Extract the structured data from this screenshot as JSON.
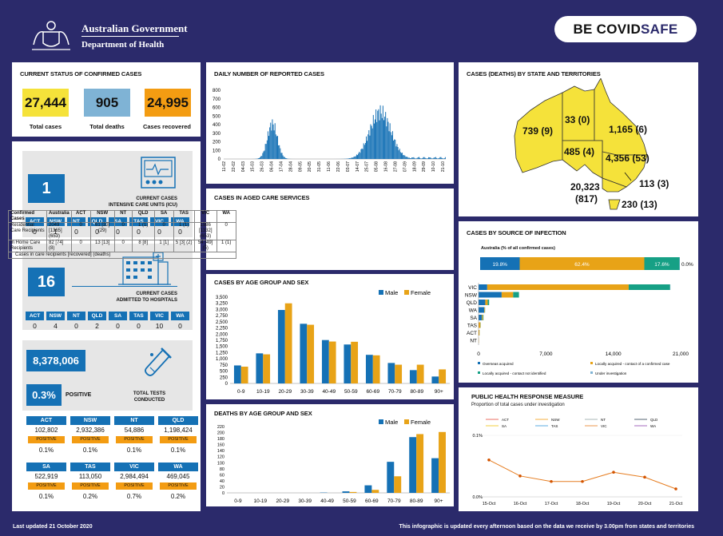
{
  "header": {
    "gov": "Australian Government",
    "dept": "Department of Health",
    "be": "BE COVID",
    "safe": "SAFE"
  },
  "status": {
    "title": "CURRENT STATUS OF CONFIRMED CASES",
    "total_cases": "27,444",
    "total_cases_label": "Total cases",
    "total_deaths": "905",
    "total_deaths_label": "Total deaths",
    "recovered": "24,995",
    "recovered_label": "Cases recovered"
  },
  "icu": {
    "value": "1",
    "caption1": "CURRENT CASES",
    "caption2": "INTENSIVE CARE UNITS (ICU)"
  },
  "hosp": {
    "value": "16",
    "caption1": "CURRENT CASES",
    "caption2": "ADMITTED TO HOSPITALS"
  },
  "states": [
    "ACT",
    "NSW",
    "NT",
    "QLD",
    "SA",
    "TAS",
    "VIC",
    "WA"
  ],
  "icu_values": [
    "0",
    "1",
    "0",
    "0",
    "0",
    "0",
    "0",
    "0"
  ],
  "hosp_values": [
    "0",
    "4",
    "0",
    "2",
    "0",
    "0",
    "10",
    "0"
  ],
  "tests": {
    "total": "8,378,006",
    "positive_pct": "0.3%",
    "positive_label": "POSITIVE",
    "caption1": "TOTAL TESTS",
    "caption2": "CONDUCTED",
    "positive_tag": "POSITIVE",
    "rows": [
      [
        {
          "state": "ACT",
          "tests": "102,802",
          "pct": "0.1%"
        },
        {
          "state": "NSW",
          "tests": "2,932,386",
          "pct": "0.1%"
        },
        {
          "state": "NT",
          "tests": "54,886",
          "pct": "0.1%"
        },
        {
          "state": "QLD",
          "tests": "1,198,424",
          "pct": "0.1%"
        }
      ],
      [
        {
          "state": "SA",
          "tests": "522,919",
          "pct": "0.1%"
        },
        {
          "state": "TAS",
          "tests": "113,050",
          "pct": "0.2%"
        },
        {
          "state": "VIC",
          "tests": "2,984,494",
          "pct": "0.7%"
        },
        {
          "state": "WA",
          "tests": "469,045",
          "pct": "0.2%"
        }
      ]
    ]
  },
  "daily": {
    "title": "DAILY NUMBER OF REPORTED CASES",
    "yticks": [
      "0",
      "100",
      "200",
      "300",
      "400",
      "500",
      "600",
      "700",
      "800"
    ],
    "xdates": [
      "11-02",
      "22-02",
      "04-03",
      "15-03",
      "26-03",
      "06-04",
      "17-04",
      "28-04",
      "09-05",
      "20-05",
      "31-05",
      "11-06",
      "22-06",
      "03-07",
      "14-07",
      "25-07",
      "05-08",
      "16-08",
      "27-08",
      "07-09",
      "18-09",
      "29-09",
      "10-10",
      "21-10"
    ]
  },
  "aged": {
    "title": "CASES IN AGED CARE SERVICES",
    "header": [
      "Confirmed Cases",
      "Australia",
      "ACT",
      "NSW",
      "NT",
      "QLD",
      "SA",
      "TAS",
      "VIC",
      "WA"
    ],
    "row1": [
      "Residential Care Recipients",
      "2049 [1365] (653)",
      "0",
      "61 [33] (29)",
      "0",
      "1 (1)",
      "0",
      "1 (1)",
      "1986 [1332] (653)",
      "0"
    ],
    "row2": [
      "In Home Care Recipients",
      "82 [74] (8)",
      "0",
      "13 [13]",
      "0",
      "8 [8]",
      "1 [1]",
      "5 [3] (2)",
      "54 [49] (5)",
      "1 (1)"
    ],
    "note": "Cases in care recipients [recovered] (deaths)"
  },
  "map": {
    "title": "CASES (DEATHS) BY STATE AND TERRITORIES",
    "labels": {
      "wa": "739 (9)",
      "nt": "33 (0)",
      "qld": "1,165 (6)",
      "sa": "485 (4)",
      "nsw": "4,356 (53)",
      "act": "113 (3)",
      "vic1": "20,323",
      "vic2": "(817)",
      "tas": "230 (13)"
    }
  },
  "source": {
    "title": "CASES BY SOURCE OF INFECTION",
    "subtitle": "Australia (% of all confirmed cases)",
    "aus_pcts": [
      "19.8%",
      "62.4%",
      "17.6%",
      "0.0%"
    ],
    "colors": [
      "#1571b5",
      "#e8a317",
      "#16a085",
      "#7fb3d5"
    ],
    "legend": [
      "Overseas acquired",
      "Locally acquired - contact of a confirmed case",
      "Locally acquired - contact not identified",
      "Under investigation"
    ],
    "xticks": [
      "0",
      "7,000",
      "14,000",
      "21,000"
    ]
  },
  "age": {
    "title": "CASES BY AGE GROUP AND SEX",
    "male": "Male",
    "female": "Female",
    "groups": [
      "0-9",
      "10-19",
      "20-29",
      "30-39",
      "40-49",
      "50-59",
      "60-69",
      "70-79",
      "80-89",
      "90+"
    ],
    "yticks": [
      "0",
      "250",
      "500",
      "750",
      "1,000",
      "1,250",
      "1,500",
      "1,750",
      "2,000",
      "2,250",
      "2,500",
      "2,750",
      "3,000",
      "3,250",
      "3,500"
    ]
  },
  "deaths": {
    "title": "DEATHS BY AGE GROUP AND SEX",
    "male": "Male",
    "female": "Female",
    "groups": [
      "0-9",
      "10-19",
      "20-29",
      "30-39",
      "40-49",
      "50-59",
      "60-69",
      "70-79",
      "80-89",
      "90+"
    ],
    "yticks": [
      "0",
      "20",
      "40",
      "60",
      "80",
      "100",
      "120",
      "140",
      "160",
      "180",
      "200",
      "220"
    ]
  },
  "phr": {
    "title": "PUBLIC HEALTH RESPONSE MEASURE",
    "subtitle": "Proportion of total cases under investigation",
    "legend": [
      "ACT",
      "NSW",
      "NT",
      "QLD",
      "SA",
      "TAS",
      "VIC",
      "WA"
    ],
    "dates": [
      "15-Oct",
      "16-Oct",
      "17-Oct",
      "18-Oct",
      "19-Oct",
      "20-Oct",
      "21-Oct"
    ],
    "yticks": [
      "0.0%",
      "0.1%"
    ]
  },
  "footer": {
    "updated": "Last updated 21 October 2020",
    "note": "This infographic is updated every afternoon based on the data we receive by 3.00pm from states and territories"
  },
  "chart_data": [
    {
      "type": "bar",
      "title": "CASES BY AGE GROUP AND SEX",
      "categories": [
        "0-9",
        "10-19",
        "20-29",
        "30-39",
        "40-49",
        "50-59",
        "60-69",
        "70-79",
        "80-89",
        "90+"
      ],
      "ylim": [
        0,
        3500
      ],
      "series": [
        {
          "name": "Male",
          "values": [
            730,
            1220,
            2980,
            2420,
            1760,
            1580,
            1160,
            830,
            540,
            280
          ]
        },
        {
          "name": "Female",
          "values": [
            680,
            1180,
            3250,
            2380,
            1700,
            1690,
            1140,
            760,
            760,
            570
          ]
        }
      ]
    },
    {
      "type": "bar",
      "title": "DEATHS BY AGE GROUP AND SEX",
      "categories": [
        "0-9",
        "10-19",
        "20-29",
        "30-39",
        "40-49",
        "50-59",
        "60-69",
        "70-79",
        "80-89",
        "90+"
      ],
      "ylim": [
        0,
        220
      ],
      "series": [
        {
          "name": "Male",
          "values": [
            0,
            0,
            0,
            0,
            1,
            5,
            25,
            103,
            185,
            115
          ]
        },
        {
          "name": "Female",
          "values": [
            0,
            0,
            0,
            0,
            0,
            3,
            10,
            55,
            195,
            202
          ]
        }
      ]
    },
    {
      "type": "bar",
      "title": "CASES BY SOURCE OF INFECTION",
      "categories": [
        "VIC",
        "NSW",
        "QLD",
        "WA",
        "SA",
        "TAS",
        "ACT",
        "NT"
      ],
      "xlim": [
        0,
        21000
      ],
      "series": [
        {
          "name": "Overseas acquired",
          "values": [
            900,
            2400,
            700,
            600,
            350,
            0,
            0,
            0
          ]
        },
        {
          "name": "Locally acquired - contact of a confirmed case",
          "values": [
            14700,
            1200,
            250,
            60,
            100,
            200,
            100,
            30
          ]
        },
        {
          "name": "Locally acquired - contact not identified",
          "values": [
            4300,
            600,
            150,
            20,
            60,
            20,
            10,
            0
          ]
        },
        {
          "name": "Under investigation",
          "values": [
            30,
            0,
            0,
            0,
            0,
            0,
            0,
            0
          ]
        }
      ]
    },
    {
      "type": "line",
      "title": "PUBLIC HEALTH RESPONSE MEASURE",
      "x": [
        "15-Oct",
        "16-Oct",
        "17-Oct",
        "18-Oct",
        "19-Oct",
        "20-Oct",
        "21-Oct"
      ],
      "series": [
        {
          "name": "VIC",
          "values": [
            0.06,
            0.034,
            0.025,
            0.025,
            0.04,
            0.032,
            0.013
          ]
        }
      ]
    }
  ]
}
